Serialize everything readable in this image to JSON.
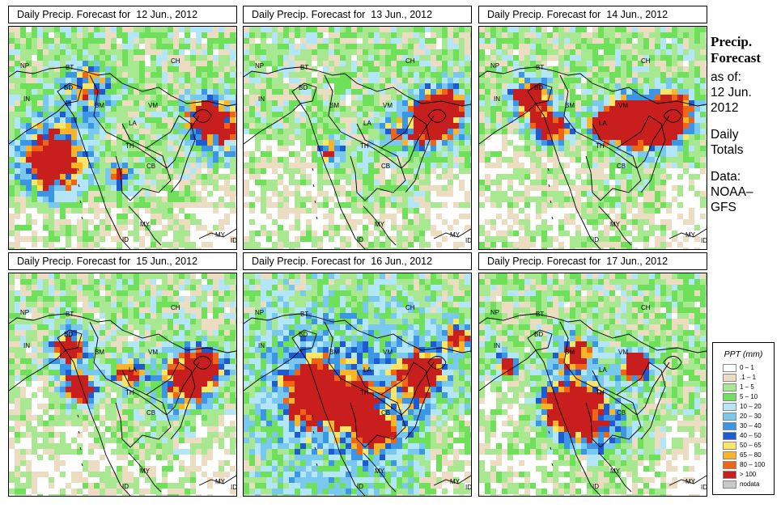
{
  "panels": [
    {
      "title": "Daily Precip. Forecast for  12 Jun., 2012",
      "seed": 11,
      "profile": "d1"
    },
    {
      "title": "Daily Precip. Forecast for  13 Jun., 2012",
      "seed": 23,
      "profile": "d2"
    },
    {
      "title": "Daily Precip. Forecast for  14 Jun., 2012",
      "seed": 37,
      "profile": "d3"
    },
    {
      "title": "Daily Precip. Forecast for  15 Jun., 2012",
      "seed": 41,
      "profile": "d4"
    },
    {
      "title": "Daily Precip. Forecast for  16 Jun., 2012",
      "seed": 53,
      "profile": "d5"
    },
    {
      "title": "Daily Precip. Forecast for  17 Jun., 2012",
      "seed": 67,
      "profile": "d6"
    }
  ],
  "country_labels": [
    "NP",
    "BT",
    "BD",
    "IN",
    "CH",
    "BM",
    "VM",
    "LA",
    "TH",
    "CB",
    "MY",
    "ID",
    "MY",
    "ID"
  ],
  "side": {
    "title_line1": "Precip.",
    "title_line2": "Forecast",
    "asof": "as of:",
    "date_line1": "12 Jun.",
    "date_line2": "2012",
    "daily_line1": "Daily",
    "daily_line2": "Totals",
    "data_line1": "Data:",
    "data_line2": "NOAA–",
    "data_line3": "GFS"
  },
  "legend": {
    "title": "PPT (mm)",
    "items": [
      {
        "label": "0 – 1",
        "color": "#ffffff"
      },
      {
        "label": ".1 – 1",
        "color": "#ecdcc2"
      },
      {
        "label": "1 – 5",
        "color": "#a8e890"
      },
      {
        "label": "5 – 10",
        "color": "#6ee05a"
      },
      {
        "label": "10 – 20",
        "color": "#b4e6fa"
      },
      {
        "label": "20 – 30",
        "color": "#78c8f0"
      },
      {
        "label": "30 – 40",
        "color": "#3c96e6"
      },
      {
        "label": "40 – 50",
        "color": "#1e5ad2"
      },
      {
        "label": "50 – 65",
        "color": "#fae664"
      },
      {
        "label": "65 – 80",
        "color": "#fab428"
      },
      {
        "label": "80 – 100",
        "color": "#f06414"
      },
      {
        "label": "> 100",
        "color": "#c81e1e"
      },
      {
        "label": "nodata",
        "color": "#c8c8c8"
      }
    ]
  }
}
